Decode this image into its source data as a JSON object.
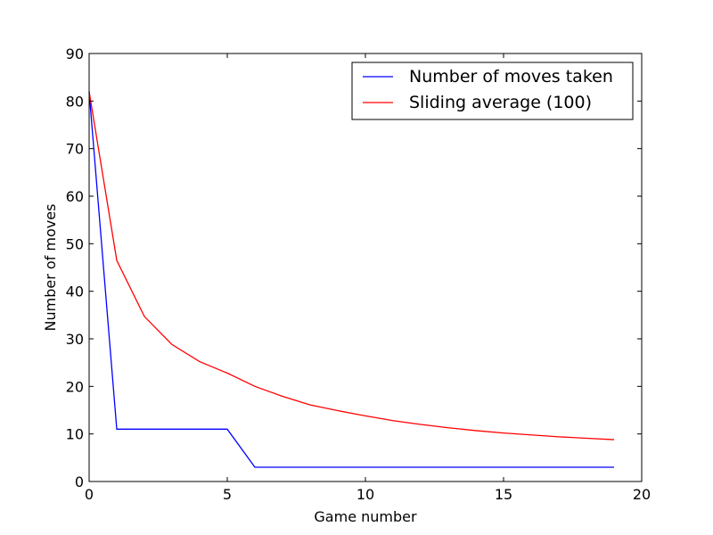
{
  "chart_data": {
    "type": "line",
    "title": "",
    "xlabel": "Game number",
    "ylabel": "Number of moves",
    "xlim": [
      0,
      20
    ],
    "ylim": [
      0,
      90
    ],
    "xticks": [
      0,
      5,
      10,
      15,
      20
    ],
    "yticks": [
      0,
      10,
      20,
      30,
      40,
      50,
      60,
      70,
      80,
      90
    ],
    "grid": false,
    "legend_position": "top-right",
    "series": [
      {
        "name": "Number of moves taken",
        "color": "#0000ff",
        "x": [
          0,
          1,
          2,
          3,
          4,
          5,
          6,
          7,
          8,
          9,
          10,
          11,
          12,
          13,
          14,
          15,
          16,
          17,
          18,
          19
        ],
        "y": [
          82,
          11,
          11,
          11,
          11,
          11,
          3,
          3,
          3,
          3,
          3,
          3,
          3,
          3,
          3,
          3,
          3,
          3,
          3,
          3
        ]
      },
      {
        "name": "Sliding average (100)",
        "color": "#ff0000",
        "x": [
          0,
          1,
          2,
          3,
          4,
          5,
          6,
          7,
          8,
          9,
          10,
          11,
          12,
          13,
          14,
          15,
          16,
          17,
          18,
          19
        ],
        "y": [
          82,
          46.5,
          34.7,
          28.8,
          25.2,
          22.8,
          20.0,
          17.9,
          16.1,
          14.9,
          13.8,
          12.8,
          12.0,
          11.3,
          10.7,
          10.2,
          9.8,
          9.4,
          9.1,
          8.8
        ]
      }
    ]
  }
}
